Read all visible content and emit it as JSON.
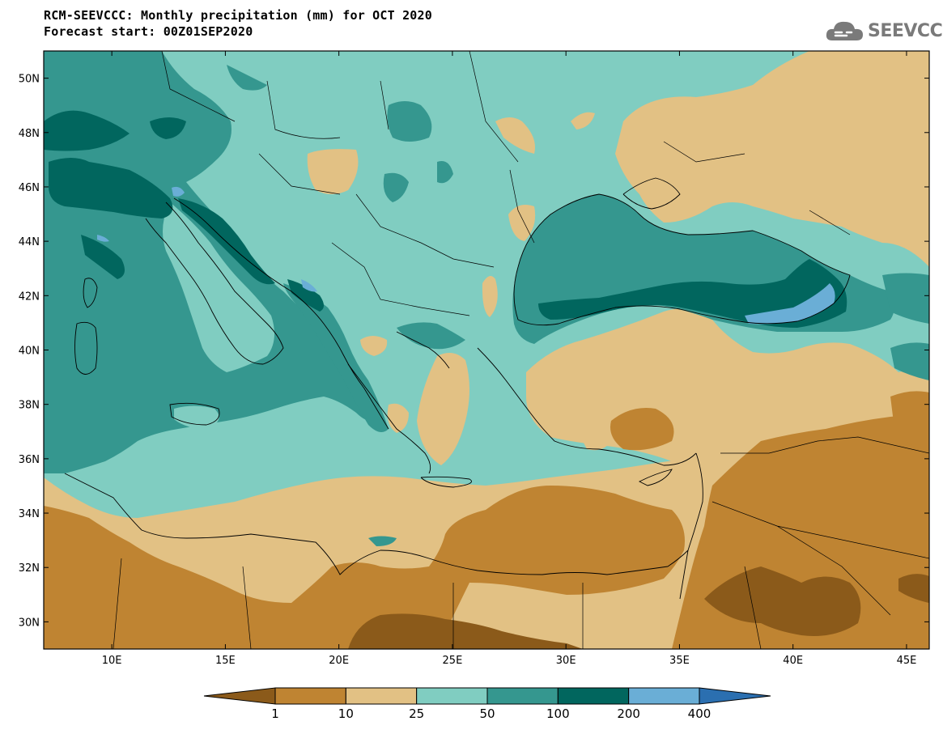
{
  "header": {
    "title_line1": "RCM-SEEVCCC: Monthly precipitation (mm) for OCT 2020",
    "title_line2": "Forecast start: 00Z01SEP2020",
    "logo_text": "SEEVCCC",
    "logo_icon": "cloud-icon"
  },
  "map": {
    "projection": "lat-lon",
    "lon_range": [
      7,
      46
    ],
    "lat_range": [
      29,
      51
    ],
    "lat_ticks": [
      {
        "value": 50,
        "label": "50N"
      },
      {
        "value": 48,
        "label": "48N"
      },
      {
        "value": 46,
        "label": "46N"
      },
      {
        "value": 44,
        "label": "44N"
      },
      {
        "value": 42,
        "label": "42N"
      },
      {
        "value": 40,
        "label": "40N"
      },
      {
        "value": 38,
        "label": "38N"
      },
      {
        "value": 36,
        "label": "36N"
      },
      {
        "value": 34,
        "label": "34N"
      },
      {
        "value": 32,
        "label": "32N"
      },
      {
        "value": 30,
        "label": "30N"
      }
    ],
    "lon_ticks": [
      {
        "value": 10,
        "label": "10E"
      },
      {
        "value": 15,
        "label": "15E"
      },
      {
        "value": 20,
        "label": "20E"
      },
      {
        "value": 25,
        "label": "25E"
      },
      {
        "value": 30,
        "label": "30E"
      },
      {
        "value": 35,
        "label": "35E"
      },
      {
        "value": 40,
        "label": "40E"
      },
      {
        "value": 45,
        "label": "45E"
      }
    ]
  },
  "colorbar": {
    "bins": [
      {
        "label": "<1",
        "color": "#8b5a1a"
      },
      {
        "label": "1-10",
        "color": "#bf8432"
      },
      {
        "label": "10-25",
        "color": "#e2c184"
      },
      {
        "label": "25-50",
        "color": "#80cdc1"
      },
      {
        "label": "50-100",
        "color": "#35978f"
      },
      {
        "label": "100-200",
        "color": "#01665e"
      },
      {
        "label": "200-400",
        "color": "#6aaed6"
      },
      {
        "label": ">400",
        "color": "#2b6fb0"
      }
    ],
    "labels": [
      "1",
      "10",
      "25",
      "50",
      "100",
      "200",
      "400"
    ]
  }
}
